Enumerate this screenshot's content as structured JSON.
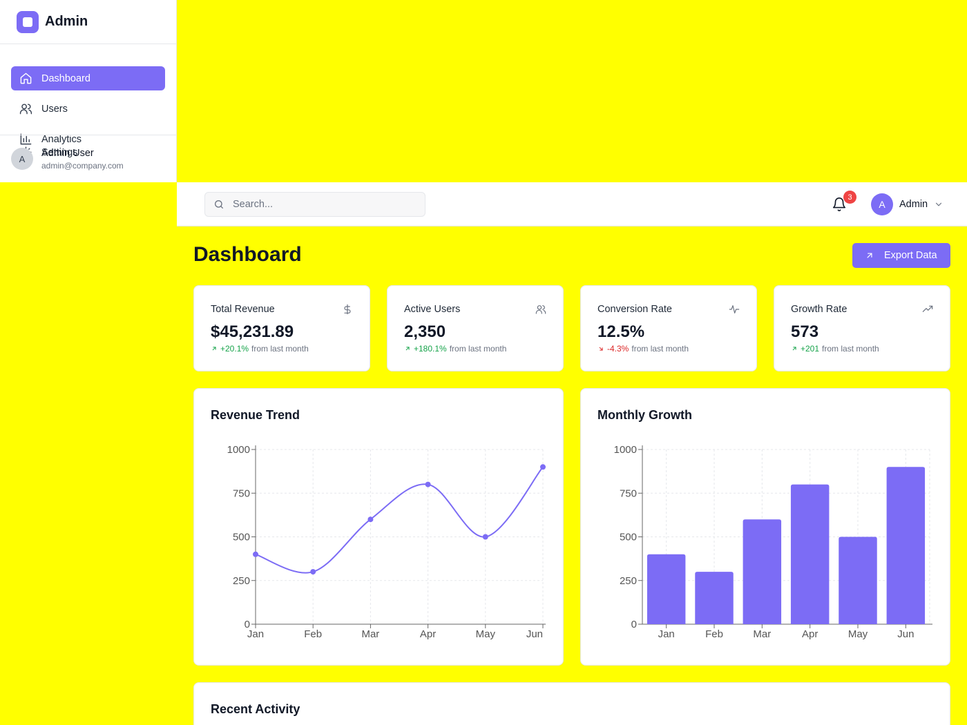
{
  "sidebar": {
    "brand": "Admin",
    "items": [
      {
        "label": "Dashboard",
        "icon": "home-icon",
        "active": true
      },
      {
        "label": "Users",
        "icon": "users-icon"
      },
      {
        "label": "Analytics",
        "icon": "bar-chart-icon"
      },
      {
        "label": "Settings",
        "icon": "gear-icon"
      }
    ],
    "user": {
      "initial": "A",
      "name": "Admin User",
      "email": "admin@company.com"
    }
  },
  "topbar": {
    "search_placeholder": "Search...",
    "notification_count": "3",
    "admin_initial": "A",
    "admin_label": "Admin"
  },
  "main": {
    "title": "Dashboard",
    "export_label": "Export Data"
  },
  "stats": [
    {
      "title": "Total Revenue",
      "value": "$45,231.89",
      "change": "+20.1%",
      "trend": "up",
      "suffix": "from last month",
      "icon": "dollar-icon"
    },
    {
      "title": "Active Users",
      "value": "2,350",
      "change": "+180.1%",
      "trend": "up",
      "suffix": "from last month",
      "icon": "users-icon"
    },
    {
      "title": "Conversion Rate",
      "value": "12.5%",
      "change": "-4.3%",
      "trend": "down",
      "suffix": "from last month",
      "icon": "activity-icon"
    },
    {
      "title": "Growth Rate",
      "value": "573",
      "change": "+201",
      "trend": "up",
      "suffix": "from last month",
      "icon": "trending-up-icon"
    }
  ],
  "cards": {
    "revenue_title": "Revenue Trend",
    "growth_title": "Monthly Growth",
    "activity_title": "Recent Activity"
  },
  "colors": {
    "accent": "#7c6cf5",
    "background": "#ffff00",
    "up": "#16a34a",
    "down": "#dc2626",
    "badge": "#ef4444"
  },
  "chart_data": [
    {
      "type": "line",
      "title": "Revenue Trend",
      "categories": [
        "Jan",
        "Feb",
        "Mar",
        "Apr",
        "May",
        "Jun"
      ],
      "values": [
        400,
        300,
        600,
        800,
        500,
        900
      ],
      "yticks": [
        0,
        250,
        500,
        750,
        1000
      ],
      "ylim": [
        0,
        1000
      ],
      "grid": true,
      "color": "#7c6cf5"
    },
    {
      "type": "bar",
      "title": "Monthly Growth",
      "categories": [
        "Jan",
        "Feb",
        "Mar",
        "Apr",
        "May",
        "Jun"
      ],
      "values": [
        400,
        300,
        600,
        800,
        500,
        900
      ],
      "yticks": [
        0,
        250,
        500,
        750,
        1000
      ],
      "ylim": [
        0,
        1000
      ],
      "grid": true,
      "color": "#7c6cf5"
    }
  ]
}
